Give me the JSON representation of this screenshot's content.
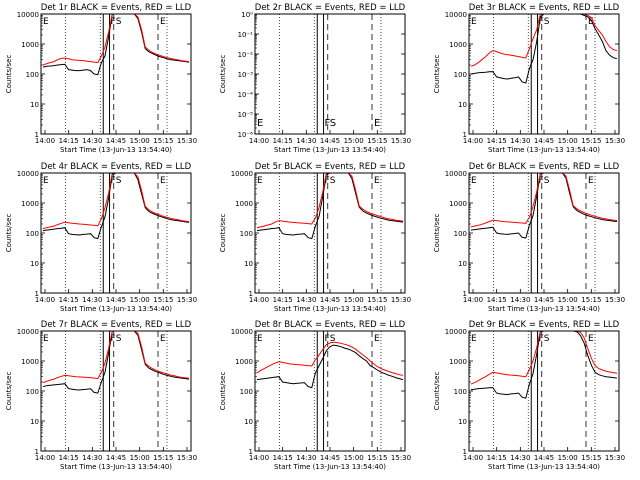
{
  "common": {
    "xlabel": "Start Time (13-Jun-13 13:54:40)",
    "ylabel": "Counts/sec",
    "xticks": [
      "14:00",
      "14:15",
      "14:30",
      "14:45",
      "15:00",
      "15:15",
      "15:30"
    ],
    "yticks_log": [
      "1",
      "10",
      "100",
      "1000",
      "10000"
    ],
    "colors": {
      "events": "#000000",
      "lld": "#ff0000",
      "frame": "#000000"
    }
  },
  "chart_data": [
    {
      "type": "line",
      "title": "Det 1r BLACK = Events, RED = LLD",
      "ylog": true,
      "ylim": [
        1,
        10000
      ],
      "markers": {
        "left": "E",
        "f": "F",
        "s": "S",
        "e": "E"
      },
      "series": [
        {
          "values": [
            170,
            180,
            185,
            190,
            200,
            205,
            210,
            140,
            135,
            130,
            130,
            135,
            140,
            130,
            100,
            95,
            240,
            400,
            1800,
            10000,
            10000,
            10000,
            10000,
            10000,
            10000,
            10000,
            7000,
            2500,
            700,
            550,
            480,
            420,
            380,
            350,
            320,
            300,
            290,
            280,
            270,
            260,
            250
          ]
        },
        {
          "values": [
            200,
            220,
            240,
            260,
            300,
            330,
            340,
            320,
            300,
            290,
            285,
            280,
            270,
            260,
            250,
            240,
            400,
            800,
            2600,
            10000,
            10000,
            10000,
            10000,
            10000,
            10000,
            10000,
            8000,
            3000,
            800,
            620,
            520,
            460,
            420,
            380,
            350,
            330,
            310,
            295,
            280,
            270,
            260
          ]
        }
      ]
    },
    {
      "type": "line",
      "title": "Det 2r BLACK = Events, RED = LLD",
      "ylog": true,
      "ylim": [
        1e-06,
        1
      ],
      "ytick_labels": [
        "10⁻⁶",
        "10⁻⁵",
        "10⁻⁴",
        "10⁻³",
        "10⁻²",
        "10⁻¹",
        "10⁰"
      ],
      "markers": {
        "left": "E",
        "f": "F",
        "s": "S",
        "e": "E"
      },
      "series": []
    },
    {
      "type": "line",
      "title": "Det 3r BLACK = Events, RED = LLD",
      "ylog": true,
      "ylim": [
        1,
        10000
      ],
      "markers": {
        "left": "E",
        "f": "F",
        "s": "S",
        "e": "E"
      },
      "series": [
        {
          "values": [
            100,
            105,
            110,
            112,
            115,
            118,
            120,
            80,
            75,
            70,
            68,
            72,
            75,
            80,
            55,
            50,
            150,
            300,
            1200,
            8000,
            10000,
            10000,
            10000,
            10000,
            10000,
            10000,
            10000,
            10000,
            10000,
            10000,
            10000,
            9000,
            8000,
            6000,
            3200,
            2000,
            1200,
            600,
            420,
            350,
            320
          ]
        },
        {
          "values": [
            180,
            200,
            240,
            300,
            380,
            500,
            600,
            560,
            500,
            460,
            440,
            420,
            400,
            380,
            360,
            340,
            700,
            1500,
            3000,
            10000,
            10000,
            10000,
            10000,
            10000,
            10000,
            10000,
            10000,
            10000,
            10000,
            10000,
            10000,
            10000,
            9000,
            7500,
            4000,
            2800,
            2000,
            1200,
            800,
            650,
            600
          ]
        }
      ]
    },
    {
      "type": "line",
      "title": "Det 4r BLACK = Events, RED = LLD",
      "ylog": true,
      "ylim": [
        1,
        10000
      ],
      "markers": {
        "left": "E",
        "f": "F",
        "s": "S",
        "e": "E"
      },
      "series": [
        {
          "values": [
            120,
            125,
            130,
            135,
            140,
            145,
            150,
            95,
            90,
            88,
            86,
            90,
            92,
            95,
            70,
            65,
            160,
            350,
            1500,
            9000,
            10000,
            10000,
            10000,
            10000,
            10000,
            10000,
            6000,
            2000,
            700,
            520,
            450,
            400,
            360,
            330,
            300,
            280,
            265,
            255,
            245,
            235,
            225
          ]
        },
        {
          "values": [
            140,
            150,
            160,
            170,
            190,
            210,
            230,
            220,
            210,
            205,
            200,
            195,
            190,
            185,
            180,
            175,
            300,
            700,
            2200,
            10000,
            10000,
            10000,
            10000,
            10000,
            10000,
            10000,
            7500,
            2600,
            780,
            600,
            500,
            440,
            400,
            360,
            330,
            310,
            290,
            275,
            260,
            250,
            240
          ]
        }
      ]
    },
    {
      "type": "line",
      "title": "Det 5r BLACK = Events, RED = LLD",
      "ylog": true,
      "ylim": [
        1,
        10000
      ],
      "markers": {
        "left": "E",
        "f": "F",
        "s": "S",
        "e": "E"
      },
      "series": [
        {
          "values": [
            120,
            125,
            130,
            135,
            140,
            145,
            150,
            95,
            90,
            88,
            86,
            90,
            92,
            95,
            70,
            65,
            170,
            360,
            1600,
            9000,
            10000,
            10000,
            10000,
            10000,
            10000,
            10000,
            6500,
            2100,
            720,
            540,
            460,
            410,
            370,
            340,
            310,
            290,
            270,
            260,
            250,
            240,
            230
          ]
        },
        {
          "values": [
            150,
            160,
            170,
            185,
            200,
            230,
            260,
            250,
            240,
            230,
            225,
            220,
            215,
            210,
            205,
            200,
            320,
            720,
            2300,
            10000,
            10000,
            10000,
            10000,
            10000,
            10000,
            10000,
            7800,
            2700,
            800,
            620,
            520,
            460,
            420,
            380,
            350,
            320,
            300,
            285,
            270,
            260,
            250
          ]
        }
      ]
    },
    {
      "type": "line",
      "title": "Det 6r BLACK = Events, RED = LLD",
      "ylog": true,
      "ylim": [
        1,
        10000
      ],
      "markers": {
        "left": "E",
        "f": "F",
        "s": "S",
        "e": "E"
      },
      "series": [
        {
          "values": [
            125,
            130,
            135,
            140,
            145,
            150,
            155,
            100,
            95,
            92,
            90,
            93,
            96,
            100,
            72,
            68,
            180,
            380,
            1700,
            9500,
            10000,
            10000,
            10000,
            10000,
            10000,
            10000,
            6800,
            2200,
            750,
            560,
            480,
            420,
            380,
            350,
            320,
            300,
            280,
            270,
            260,
            250,
            240
          ]
        },
        {
          "values": [
            160,
            170,
            180,
            195,
            215,
            240,
            270,
            260,
            250,
            240,
            235,
            230,
            225,
            220,
            215,
            210,
            340,
            760,
            2400,
            10000,
            10000,
            10000,
            10000,
            10000,
            10000,
            10000,
            8000,
            2800,
            820,
            640,
            540,
            480,
            430,
            390,
            360,
            330,
            310,
            295,
            280,
            270,
            260
          ]
        }
      ]
    },
    {
      "type": "line",
      "title": "Det 7r BLACK = Events, RED = LLD",
      "ylog": true,
      "ylim": [
        1,
        10000
      ],
      "markers": {
        "left": "E",
        "f": "F",
        "s": "S",
        "e": "E"
      },
      "series": [
        {
          "values": [
            140,
            150,
            155,
            160,
            165,
            170,
            175,
            120,
            115,
            110,
            108,
            112,
            115,
            118,
            90,
            85,
            200,
            420,
            1900,
            10000,
            10000,
            10000,
            10000,
            10000,
            10000,
            10000,
            7200,
            2400,
            780,
            580,
            500,
            440,
            400,
            360,
            330,
            310,
            290,
            280,
            270,
            260,
            250
          ]
        },
        {
          "values": [
            190,
            210,
            230,
            250,
            280,
            310,
            330,
            320,
            310,
            300,
            295,
            290,
            285,
            280,
            270,
            260,
            420,
            850,
            2700,
            10000,
            10000,
            10000,
            10000,
            10000,
            10000,
            10000,
            8400,
            3000,
            850,
            660,
            560,
            490,
            440,
            400,
            370,
            340,
            320,
            300,
            285,
            275,
            265
          ]
        }
      ]
    },
    {
      "type": "line",
      "title": "Det 8r BLACK = Events, RED = LLD",
      "ylog": true,
      "ylim": [
        1,
        10000
      ],
      "markers": {
        "left": "E",
        "f": "F",
        "s": "S",
        "e": "E"
      },
      "series": [
        {
          "values": [
            240,
            250,
            260,
            270,
            280,
            290,
            300,
            200,
            190,
            180,
            175,
            180,
            185,
            190,
            140,
            130,
            400,
            700,
            1200,
            2200,
            3000,
            3400,
            3200,
            3000,
            2700,
            2500,
            2200,
            1900,
            1500,
            1200,
            1000,
            700,
            600,
            500,
            420,
            380,
            340,
            310,
            280,
            260,
            240
          ]
        },
        {
          "values": [
            400,
            480,
            560,
            650,
            750,
            850,
            950,
            900,
            850,
            800,
            780,
            760,
            740,
            720,
            700,
            680,
            1100,
            1600,
            2400,
            3500,
            4000,
            4200,
            4100,
            3900,
            3600,
            3300,
            2900,
            2500,
            2000,
            1600,
            1300,
            1000,
            800,
            650,
            560,
            500,
            450,
            410,
            380,
            350,
            330
          ]
        }
      ]
    },
    {
      "type": "line",
      "title": "Det 9r BLACK = Events, RED = LLD",
      "ylog": true,
      "ylim": [
        1,
        10000
      ],
      "markers": {
        "left": "E",
        "f": "F",
        "s": "S",
        "e": "E"
      },
      "series": [
        {
          "values": [
            110,
            115,
            120,
            122,
            125,
            128,
            130,
            85,
            80,
            78,
            76,
            80,
            82,
            85,
            62,
            58,
            170,
            380,
            1700,
            9500,
            10000,
            10000,
            10000,
            10000,
            10000,
            10000,
            10000,
            10000,
            10000,
            9500,
            7000,
            4000,
            1500,
            700,
            420,
            350,
            320,
            300,
            290,
            280,
            270
          ]
        },
        {
          "values": [
            170,
            190,
            220,
            260,
            300,
            360,
            420,
            400,
            380,
            360,
            350,
            340,
            330,
            320,
            310,
            300,
            520,
            1000,
            2800,
            10000,
            10000,
            10000,
            10000,
            10000,
            10000,
            10000,
            10000,
            10000,
            10000,
            10000,
            9000,
            6000,
            2600,
            1200,
            700,
            560,
            500,
            460,
            430,
            410,
            390
          ]
        }
      ]
    }
  ]
}
